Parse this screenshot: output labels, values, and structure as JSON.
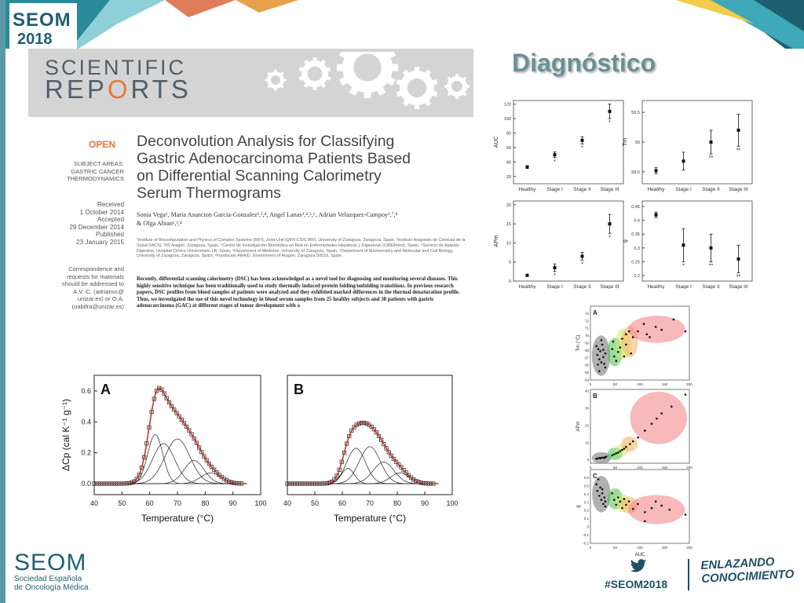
{
  "brand": {
    "name": "SEOM",
    "year": "2018",
    "full_name_line1": "Sociedad Española",
    "full_name_line2": "de Oncología Médica",
    "hashtag": "#SEOM2018",
    "tagline_line1": "ENLAZANDO",
    "tagline_line2": "CONOCIMIENTO",
    "colors": {
      "primary": "#1f5f73",
      "accent": "#e8783b",
      "heading": "#6c8f99"
    }
  },
  "slide_title": "Diagnóstico",
  "paper": {
    "journal_line1": "SCIENTIFIC",
    "journal_line2_a": "REP",
    "journal_line2_b": "O",
    "journal_line2_c": "RTS",
    "open_label": "OPEN",
    "title_line1": "Deconvolution Analysis for Classifying",
    "title_line2": "Gastric Adenocarcinoma Patients Based",
    "title_line3": "on Differential Scanning Calorimetry",
    "title_line4": "Serum Thermograms",
    "subject_areas_label": "SUBJECT AREAS:",
    "subject_1": "GASTRIC CANCER",
    "subject_2": "THERMODYNAMICS",
    "received_label": "Received",
    "received_date": "1 October 2014",
    "accepted_label": "Accepted",
    "accepted_date": "29 December 2014",
    "published_label": "Published",
    "published_date": "23 January 2015",
    "correspondence_1": "Correspondence and",
    "correspondence_2": "requests for materials",
    "correspondence_3": "should be addressed to",
    "correspondence_4": "A.V.-C. (adrianvc@",
    "correspondence_5": "unizar.es) or O.A.",
    "correspondence_6": "(oabifra@unizar.es)",
    "authors_line1": "Sonia Vega¹, Maria Asuncion Garcia-Gonzalez²,³,⁴, Angel Lanas³,⁴,⁵,⁶, Adrian Velazquez-Campoy¹,⁷,⁸",
    "authors_line2": "& Olga Abian¹,³,⁴",
    "affiliations": "¹Institute of Biocomputation and Physics of Complex Systems (BIFI), Joint-Unit IQFR-CSIC-BIFI, University of Zaragoza, Zaragoza, Spain, ²Instituto Aragonés de Ciencias de la Salud (IACS), ³IIS Aragón, Zaragoza, Spain, ⁴Centro de Investigación Biomédica en Red en Enfermedades Hepáticas y Digestivas (CIBERehd), Spain, ⁵Servicio de Aparato Digestivo, Hospital Clínico Universitario LB, Spain, ⁶Department of Medicine, University of Zaragoza, Spain, ⁷Department of Biochemistry and Molecular and Cell Biology, University of Zaragoza, Zaragoza, Spain, ⁸Fundacion ARAID, Government of Aragon, Zaragoza 50018, Spain.",
    "abstract": "Recently, differential scanning calorimetry (DSC) has been acknowledged as a novel tool for diagnosing and monitoring several diseases. This highly sensitive technique has been traditionally used to study thermally induced protein folding/unfolding transitions. In previous research papers, DSC profiles from blood samples of patients were analyzed and they exhibited marked differences in the thermal denaturation profile. Thus, we investigated the use of this novel technology in blood serum samples from 25 healthy subjects and 30 patients with gastric adenocarcinoma (GAC) at different stages of tumor development with a"
  },
  "chart_data": [
    {
      "type": "line",
      "panel": "A",
      "xlabel": "Temperature (°C)",
      "ylabel": "ΔCp (cal K⁻¹ g⁻¹)",
      "xlim": [
        40,
        100
      ],
      "ylim": [
        0.0,
        0.6
      ],
      "xticks": [
        40,
        50,
        60,
        70,
        80,
        90,
        100
      ],
      "yticks": [
        0.0,
        0.2,
        0.4,
        0.6
      ],
      "components": [
        {
          "center": 62,
          "height": 0.32,
          "width": 2.7
        },
        {
          "center": 65,
          "height": 0.26,
          "width": 4.0
        },
        {
          "center": 70,
          "height": 0.29,
          "width": 4.5
        },
        {
          "center": 76,
          "height": 0.15,
          "width": 3.6
        },
        {
          "center": 82,
          "height": 0.07,
          "width": 3.6
        }
      ],
      "markers_t_range": [
        40,
        94
      ]
    },
    {
      "type": "line",
      "panel": "B",
      "xlabel": "Temperature (°C)",
      "xlim": [
        40,
        100
      ],
      "ylim": [
        0.0,
        0.6
      ],
      "xticks": [
        40,
        50,
        60,
        70,
        80,
        90,
        100
      ],
      "components": [
        {
          "center": 62,
          "height": 0.1,
          "width": 2.3
        },
        {
          "center": 65,
          "height": 0.23,
          "width": 3.4
        },
        {
          "center": 70,
          "height": 0.24,
          "width": 3.8
        },
        {
          "center": 75,
          "height": 0.14,
          "width": 3.8
        },
        {
          "center": 81,
          "height": 0.07,
          "width": 3.4
        }
      ],
      "markers_t_range": [
        40,
        94
      ]
    },
    {
      "type": "scatter",
      "panel": "AUC",
      "categories": [
        "Healthy",
        "Stage I",
        "Stage II",
        "Stage III"
      ],
      "ylabel": "AUC",
      "ylim": [
        10,
        125
      ],
      "yticks": [
        20,
        40,
        60,
        80,
        100,
        120
      ],
      "values": [
        33,
        50,
        70,
        110
      ],
      "err": [
        2,
        4,
        5,
        10
      ],
      "significance": [
        "",
        "*",
        "*",
        "*"
      ]
    },
    {
      "type": "scatter",
      "panel": "Tm",
      "categories": [
        "Healthy",
        "Stage I",
        "Stage II",
        "Stage III"
      ],
      "ylabel": "Tm",
      "ylim": [
        58.3,
        59.7
      ],
      "yticks": [
        58.5,
        59.0,
        59.5
      ],
      "values": [
        58.52,
        58.68,
        59.0,
        59.2
      ],
      "err": [
        0.05,
        0.15,
        0.2,
        0.27
      ],
      "significance": [
        "",
        "",
        "**",
        "**"
      ]
    },
    {
      "type": "scatter",
      "panel": "APm",
      "categories": [
        "Healthy",
        "Stage I",
        "Stage II",
        "Stage III"
      ],
      "ylabel": "APm",
      "ylim": [
        0,
        21
      ],
      "yticks": [
        0,
        5,
        10,
        15,
        20
      ],
      "values": [
        1.5,
        3.5,
        6.5,
        15
      ],
      "err": [
        0.3,
        1.0,
        1.0,
        2.5
      ],
      "significance": [
        "",
        "*",
        "*",
        "*"
      ]
    },
    {
      "type": "scatter",
      "panel": "g",
      "categories": [
        "Healthy",
        "Stage I",
        "Stage II",
        "Stage III"
      ],
      "ylabel": "g",
      "ylim": [
        0.18,
        0.47
      ],
      "yticks": [
        0.2,
        0.25,
        0.3,
        0.35,
        0.4,
        0.45
      ],
      "values": [
        0.42,
        0.31,
        0.3,
        0.26
      ],
      "err": [
        0.01,
        0.06,
        0.05,
        0.05
      ],
      "significance": [
        "",
        "*",
        "**",
        "**"
      ]
    },
    {
      "type": "scatter",
      "panel": "A",
      "xlabel": "",
      "ylabel": "Tm (°C)",
      "xlim": [
        0,
        200
      ],
      "ylim": [
        64,
        74
      ],
      "xticks": [
        0,
        50,
        100,
        150,
        200
      ],
      "yticks": [
        64,
        65,
        66,
        67,
        68,
        69,
        70,
        71,
        72,
        73
      ],
      "groups": [
        {
          "color": "#6f6f6f",
          "points": [
            [
              12,
              68.6
            ],
            [
              14,
              67.4
            ],
            [
              16,
              68.2
            ],
            [
              18,
              66.8
            ],
            [
              20,
              67.9
            ],
            [
              22,
              66.4
            ],
            [
              24,
              68.8
            ],
            [
              26,
              67.1
            ],
            [
              28,
              66.2
            ],
            [
              30,
              65.7
            ],
            [
              18,
              65.2
            ],
            [
              22,
              69.4
            ],
            [
              26,
              68.1
            ],
            [
              30,
              67.6
            ],
            [
              15,
              66.1
            ]
          ]
        },
        {
          "color": "#48c248",
          "points": [
            [
              44,
              68.2
            ],
            [
              48,
              67.2
            ],
            [
              52,
              66.6
            ],
            [
              46,
              69.2
            ],
            [
              56,
              67.8
            ]
          ]
        },
        {
          "color": "#d8e56c",
          "points": [
            [
              60,
              68.4
            ],
            [
              64,
              69.6
            ],
            [
              68,
              67.2
            ],
            [
              72,
              70.2
            ]
          ]
        },
        {
          "color": "#f2b15e",
          "points": [
            [
              72,
              68.8
            ],
            [
              78,
              70.6
            ],
            [
              86,
              69.8
            ],
            [
              82,
              67.6
            ]
          ]
        },
        {
          "color": "#f07f7f",
          "points": [
            [
              96,
              70.6
            ],
            [
              108,
              71.6
            ],
            [
              120,
              69.8
            ],
            [
              132,
              71.2
            ],
            [
              168,
              72.2
            ],
            [
              192,
              70.6
            ],
            [
              144,
              70.8
            ],
            [
              114,
              70.2
            ]
          ]
        }
      ]
    },
    {
      "type": "scatter",
      "panel": "B",
      "xlabel": "",
      "ylabel": "APm",
      "xlim": [
        0,
        200
      ],
      "ylim": [
        -2,
        41
      ],
      "xticks": [
        0,
        50,
        100,
        150,
        200
      ],
      "yticks": [
        0,
        10,
        20,
        30,
        40
      ],
      "groups": [
        {
          "color": "#6f6f6f",
          "points": [
            [
              12,
              0.6
            ],
            [
              14,
              0.8
            ],
            [
              18,
              1.0
            ],
            [
              22,
              1.2
            ],
            [
              26,
              1.3
            ],
            [
              30,
              1.5
            ],
            [
              32,
              1.8
            ],
            [
              20,
              0.9
            ],
            [
              28,
              1.1
            ]
          ]
        },
        {
          "color": "#48c248",
          "points": [
            [
              44,
              2.6
            ],
            [
              48,
              3.2
            ],
            [
              52,
              3.8
            ],
            [
              56,
              4.2
            ]
          ]
        },
        {
          "color": "#d8e56c",
          "points": [
            [
              60,
              5.0
            ],
            [
              64,
              5.8
            ],
            [
              68,
              6.4
            ]
          ]
        },
        {
          "color": "#f2b15e",
          "points": [
            [
              72,
              7.5
            ],
            [
              80,
              9.2
            ],
            [
              86,
              10.8
            ]
          ]
        },
        {
          "color": "#f07f7f",
          "points": [
            [
              96,
              13
            ],
            [
              110,
              17
            ],
            [
              124,
              21
            ],
            [
              144,
              27
            ],
            [
              164,
              31
            ],
            [
              192,
              38
            ],
            [
              134,
              24
            ]
          ]
        }
      ]
    },
    {
      "type": "scatter",
      "panel": "C",
      "xlabel": "AUC",
      "ylabel": "g",
      "xlim": [
        0,
        200
      ],
      "ylim": [
        -0.2,
        0.7
      ],
      "xticks": [
        0,
        50,
        100,
        150,
        200
      ],
      "yticks": [
        -0.2,
        -0.1,
        0.0,
        0.1,
        0.2,
        0.3,
        0.4,
        0.5,
        0.6
      ],
      "groups": [
        {
          "color": "#6f6f6f",
          "points": [
            [
              12,
              0.52
            ],
            [
              14,
              0.44
            ],
            [
              18,
              0.38
            ],
            [
              20,
              0.48
            ],
            [
              22,
              0.33
            ],
            [
              24,
              0.41
            ],
            [
              26,
              0.28
            ],
            [
              28,
              0.36
            ],
            [
              30,
              0.31
            ],
            [
              16,
              0.58
            ],
            [
              24,
              0.46
            ],
            [
              30,
              0.25
            ]
          ]
        },
        {
          "color": "#48c248",
          "points": [
            [
              44,
              0.41
            ],
            [
              48,
              0.33
            ],
            [
              52,
              0.27
            ],
            [
              56,
              0.36
            ]
          ]
        },
        {
          "color": "#d8e56c",
          "points": [
            [
              60,
              0.31
            ],
            [
              64,
              0.23
            ],
            [
              68,
              0.34
            ]
          ]
        },
        {
          "color": "#f2b15e",
          "points": [
            [
              72,
              0.27
            ],
            [
              78,
              0.31
            ],
            [
              86,
              0.22
            ]
          ]
        },
        {
          "color": "#f07f7f",
          "points": [
            [
              96,
              0.28
            ],
            [
              110,
              0.18
            ],
            [
              124,
              0.23
            ],
            [
              144,
              0.26
            ],
            [
              160,
              0.21
            ],
            [
              192,
              0.15
            ],
            [
              132,
              0.31
            ],
            [
              110,
              0.07
            ]
          ]
        }
      ]
    }
  ]
}
